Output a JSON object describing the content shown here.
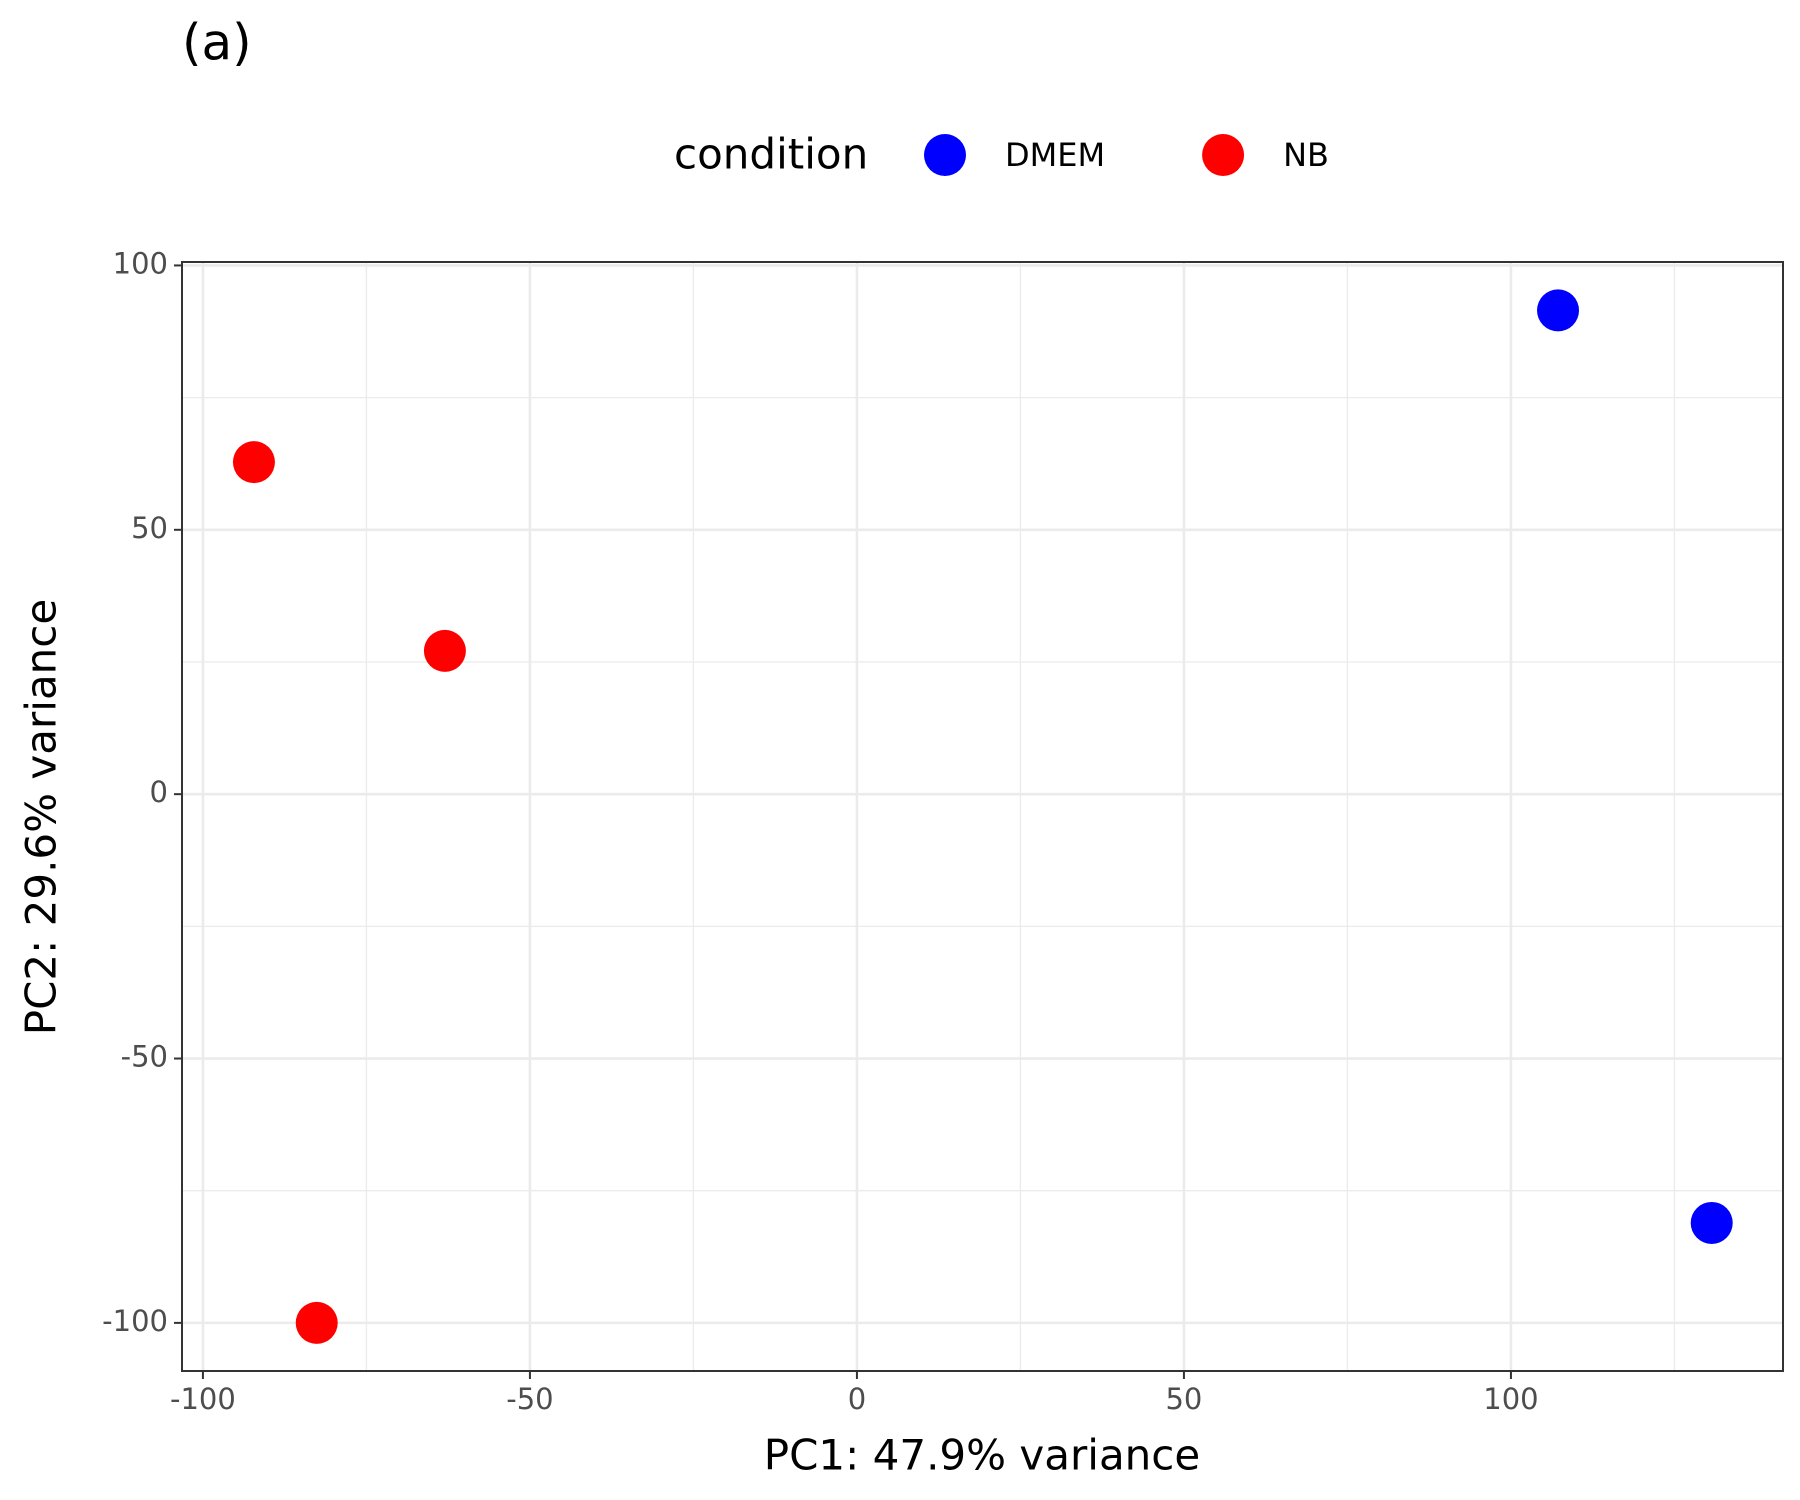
{
  "chart_data": {
    "type": "scatter",
    "panel_label": "(a)",
    "xlabel": "PC1: 47.9% variance",
    "ylabel": "PC2: 29.6% variance",
    "legend_title": "condition",
    "legend_position": "top",
    "series": [
      {
        "name": "DMEM",
        "color": "#0000ff",
        "x": [
          107.2,
          130.7
        ],
        "values": [
          91.5,
          -81.1
        ]
      },
      {
        "name": "NB",
        "color": "#ff0000",
        "x": [
          -92.2,
          -63.0,
          -82.6
        ],
        "values": [
          62.8,
          27.1,
          -100
        ]
      }
    ],
    "xlim": [
      -103.2,
      141.6
    ],
    "ylim": [
      -109.1,
      100.65
    ],
    "xticks": [
      -100,
      -50,
      0,
      50,
      100
    ],
    "yticks": [
      -100,
      -50,
      0,
      50,
      100
    ],
    "grid": true
  }
}
